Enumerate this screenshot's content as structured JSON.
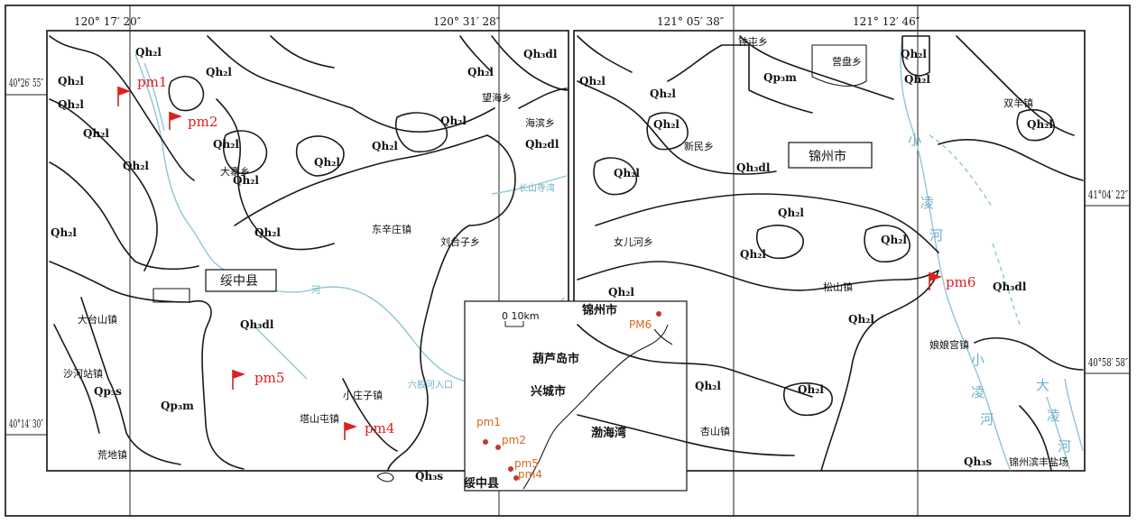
{
  "coords": {
    "top": [
      "120° 17′ 20″",
      "120° 31′ 28″",
      "121° 05′ 38″",
      "121° 12′ 46″"
    ],
    "left": [
      "40°26′ 55″",
      "40°14′ 30″"
    ],
    "right": [
      "41°04′ 22″",
      "40°58′ 58″"
    ]
  },
  "cities": {
    "suizhong": "绥中县",
    "jinzhou": "锦州市"
  },
  "samples": [
    "pm1",
    "pm2",
    "pm4",
    "pm5",
    "pm6"
  ],
  "units": {
    "qh2l": "Qh₂l",
    "qh3dl": "Qh₃dl",
    "qh2dl": "Qh₂dl",
    "qp3m": "Qp₃m",
    "qp3s": "Qp₃s",
    "qh3s": "Qh₃s"
  },
  "places_left": [
    "大寨乡",
    "东辛庄镇",
    "刘台子乡",
    "大台山镇",
    "沙河站镇",
    "荒地镇",
    "小庄子镇",
    "塔山屯镇",
    "望海乡",
    "海滨乡",
    "长山寺湾",
    "六股河入口",
    "河"
  ],
  "places_right": [
    "钟屯乡",
    "营盘乡",
    "新民乡",
    "双羊镇",
    "女儿河乡",
    "松山镇",
    "娘娘宫镇",
    "杏山镇",
    "锦州滨丰盐场",
    "小",
    "凌",
    "河",
    "小",
    "凌",
    "河",
    "大",
    "凌",
    "河"
  ],
  "inset": {
    "scale": "0  10km",
    "labels": [
      "锦州市",
      "葫芦岛市",
      "兴城市",
      "渤海湾",
      "绥中县"
    ],
    "samples": [
      "pm1",
      "pm2",
      "pm5",
      "pm4",
      "PM6"
    ]
  },
  "colors": {
    "river": "#8fc6d8",
    "sample_red": "#e02020",
    "inset_orange": "#d2691e"
  }
}
